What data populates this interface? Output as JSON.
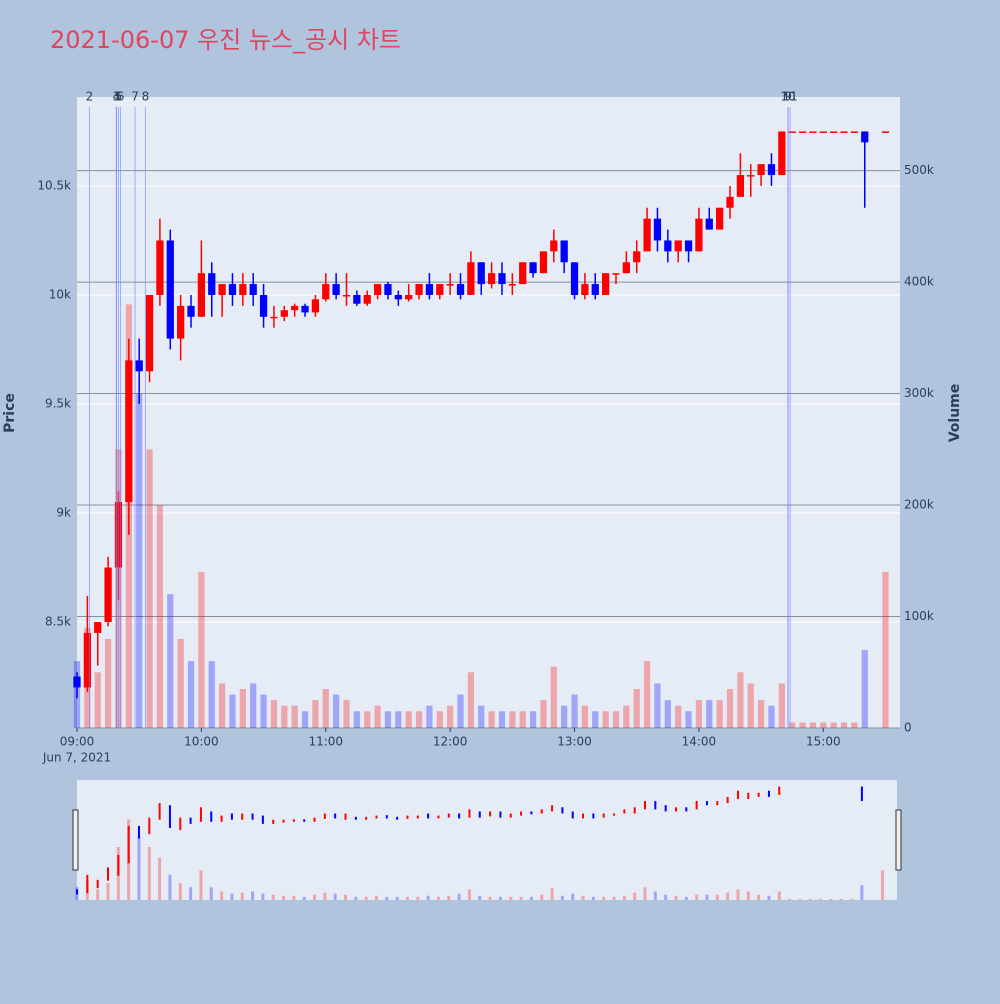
{
  "chart_data": {
    "type": "candlestick",
    "title": "2021-06-07 우진 뉴스_공시 차트",
    "y_label": "Price",
    "y2_label": "Volume",
    "date_label": "Jun 7, 2021",
    "up_color": "#ff0000",
    "down_color": "#0000ff",
    "xlim": [
      "2021-06-07 09:00",
      "2021-06-07 15:37"
    ],
    "xticks": [
      {
        "value": "2021-06-07 09:00",
        "label": "09:00"
      },
      {
        "value": "2021-06-07 10:00",
        "label": "10:00"
      },
      {
        "value": "2021-06-07 11:00",
        "label": "11:00"
      },
      {
        "value": "2021-06-07 12:00",
        "label": "12:00"
      },
      {
        "value": "2021-06-07 13:00",
        "label": "13:00"
      },
      {
        "value": "2021-06-07 14:00",
        "label": "14:00"
      },
      {
        "value": "2021-06-07 15:00",
        "label": "15:00"
      }
    ],
    "ylim": [
      8014,
      10908
    ],
    "yticks": [
      {
        "value": 8500,
        "label": "8.5k"
      },
      {
        "value": 9000,
        "label": "9k"
      },
      {
        "value": 9500,
        "label": "9.5k"
      },
      {
        "value": 10000,
        "label": "10k"
      },
      {
        "value": 10500,
        "label": "10.5k"
      }
    ],
    "y2lim": [
      0,
      566000
    ],
    "y2ticks": [
      0,
      {
        "value": 100000,
        "label": "100k"
      },
      {
        "value": 200000,
        "label": "200k"
      },
      {
        "value": 300000,
        "label": "300k"
      },
      {
        "value": 400000,
        "label": "400k"
      },
      {
        "value": 500000,
        "label": "500k"
      }
    ],
    "annotations": [
      {
        "x": "2021-06-07 09:06",
        "text": "2"
      },
      {
        "x": "2021-06-07 09:19",
        "text": "3"
      },
      {
        "x": "2021-06-07 09:19",
        "text": "4"
      },
      {
        "x": "2021-06-07 09:20",
        "text": "5"
      },
      {
        "x": "2021-06-07 09:21",
        "text": "6"
      },
      {
        "x": "2021-06-07 09:28",
        "text": "7"
      },
      {
        "x": "2021-06-07 09:33",
        "text": "8"
      },
      {
        "x": "2021-06-07 14:43",
        "text": "9"
      },
      {
        "x": "2021-06-07 14:43",
        "text": "10"
      },
      {
        "x": "2021-06-07 14:44",
        "text": "11"
      }
    ],
    "x": [
      "2021-06-07 09:00",
      "2021-06-07 09:05",
      "2021-06-07 09:10",
      "2021-06-07 09:15",
      "2021-06-07 09:20",
      "2021-06-07 09:25",
      "2021-06-07 09:30",
      "2021-06-07 09:35",
      "2021-06-07 09:40",
      "2021-06-07 09:45",
      "2021-06-07 09:50",
      "2021-06-07 09:55",
      "2021-06-07 10:00",
      "2021-06-07 10:05",
      "2021-06-07 10:10",
      "2021-06-07 10:15",
      "2021-06-07 10:20",
      "2021-06-07 10:25",
      "2021-06-07 10:30",
      "2021-06-07 10:35",
      "2021-06-07 10:40",
      "2021-06-07 10:45",
      "2021-06-07 10:50",
      "2021-06-07 10:55",
      "2021-06-07 11:00",
      "2021-06-07 11:05",
      "2021-06-07 11:10",
      "2021-06-07 11:15",
      "2021-06-07 11:20",
      "2021-06-07 11:25",
      "2021-06-07 11:30",
      "2021-06-07 11:35",
      "2021-06-07 11:40",
      "2021-06-07 11:45",
      "2021-06-07 11:50",
      "2021-06-07 11:55",
      "2021-06-07 12:00",
      "2021-06-07 12:05",
      "2021-06-07 12:10",
      "2021-06-07 12:15",
      "2021-06-07 12:20",
      "2021-06-07 12:25",
      "2021-06-07 12:30",
      "2021-06-07 12:35",
      "2021-06-07 12:40",
      "2021-06-07 12:45",
      "2021-06-07 12:50",
      "2021-06-07 12:55",
      "2021-06-07 13:00",
      "2021-06-07 13:05",
      "2021-06-07 13:10",
      "2021-06-07 13:15",
      "2021-06-07 13:20",
      "2021-06-07 13:25",
      "2021-06-07 13:30",
      "2021-06-07 13:35",
      "2021-06-07 13:40",
      "2021-06-07 13:45",
      "2021-06-07 13:50",
      "2021-06-07 13:55",
      "2021-06-07 14:00",
      "2021-06-07 14:05",
      "2021-06-07 14:10",
      "2021-06-07 14:15",
      "2021-06-07 14:20",
      "2021-06-07 14:25",
      "2021-06-07 14:30",
      "2021-06-07 14:35",
      "2021-06-07 14:40",
      "2021-06-07 14:45",
      "2021-06-07 14:50",
      "2021-06-07 14:55",
      "2021-06-07 15:00",
      "2021-06-07 15:05",
      "2021-06-07 15:10",
      "2021-06-07 15:15",
      "2021-06-07 15:20",
      "2021-06-07 15:30"
    ],
    "open": [
      8250,
      8200,
      8450,
      8500,
      8750,
      9050,
      9700,
      9650,
      10000,
      10250,
      9800,
      9950,
      9900,
      10100,
      10000,
      10050,
      10000,
      10050,
      10000,
      9900,
      9900,
      9930,
      9950,
      9920,
      9980,
      10050,
      10000,
      10000,
      9960,
      10000,
      10050,
      10000,
      9980,
      10000,
      10050,
      10000,
      10050,
      10050,
      10000,
      10150,
      10050,
      10100,
      10050,
      10050,
      10150,
      10100,
      10200,
      10250,
      10150,
      10000,
      10050,
      10000,
      10100,
      10100,
      10150,
      10200,
      10350,
      10250,
      10200,
      10250,
      10200,
      10350,
      10300,
      10400,
      10450,
      10550,
      10550,
      10600,
      10550,
      10750,
      10750,
      10750,
      10750,
      10750,
      10750,
      10750,
      10750,
      10750
    ],
    "high": [
      8270,
      8620,
      8500,
      8800,
      9100,
      9800,
      9800,
      10000,
      10350,
      10300,
      10000,
      10000,
      10250,
      10150,
      10050,
      10100,
      10100,
      10100,
      10050,
      9950,
      9950,
      9960,
      9960,
      10000,
      10100,
      10100,
      10100,
      10020,
      10020,
      10050,
      10060,
      10020,
      10050,
      10050,
      10100,
      10050,
      10100,
      10100,
      10200,
      10150,
      10150,
      10150,
      10100,
      10150,
      10150,
      10200,
      10300,
      10250,
      10150,
      10100,
      10100,
      10100,
      10100,
      10200,
      10250,
      10400,
      10400,
      10300,
      10250,
      10250,
      10400,
      10400,
      10400,
      10500,
      10650,
      10600,
      10600,
      10650,
      10750,
      10750,
      10750,
      10750,
      10750,
      10750,
      10750,
      10750,
      10750,
      10750
    ],
    "low": [
      8150,
      8180,
      8300,
      8480,
      8600,
      8900,
      9500,
      9600,
      9950,
      9750,
      9700,
      9850,
      9900,
      9900,
      9900,
      9950,
      9950,
      9950,
      9850,
      9850,
      9880,
      9900,
      9900,
      9900,
      9970,
      9980,
      9950,
      9950,
      9950,
      9980,
      9980,
      9950,
      9970,
      9980,
      9980,
      9980,
      10000,
      9980,
      10000,
      10000,
      10030,
      10000,
      10000,
      10050,
      10080,
      10100,
      10150,
      10100,
      9980,
      9980,
      9980,
      10000,
      10050,
      10100,
      10100,
      10200,
      10200,
      10150,
      10150,
      10150,
      10200,
      10300,
      10300,
      10350,
      10450,
      10450,
      10500,
      10500,
      10550,
      10750,
      10750,
      10750,
      10750,
      10750,
      10750,
      10750,
      10400,
      10750
    ],
    "close": [
      8200,
      8450,
      8500,
      8750,
      9050,
      9700,
      9650,
      10000,
      10250,
      9800,
      9950,
      9900,
      10100,
      10000,
      10050,
      10000,
      10050,
      10000,
      9900,
      9900,
      9930,
      9950,
      9920,
      9980,
      10050,
      10000,
      10000,
      9960,
      10000,
      10050,
      10000,
      9980,
      10000,
      10050,
      10000,
      10050,
      10050,
      10000,
      10150,
      10050,
      10100,
      10050,
      10050,
      10150,
      10100,
      10200,
      10250,
      10150,
      10000,
      10050,
      10000,
      10100,
      10100,
      10150,
      10200,
      10350,
      10250,
      10200,
      10250,
      10200,
      10350,
      10300,
      10400,
      10450,
      10550,
      10550,
      10600,
      10550,
      10750,
      10750,
      10750,
      10750,
      10750,
      10750,
      10750,
      10750,
      10700,
      10750
    ],
    "volume": [
      60000,
      90000,
      50000,
      80000,
      250000,
      380000,
      300000,
      250000,
      200000,
      120000,
      80000,
      60000,
      140000,
      60000,
      40000,
      30000,
      35000,
      40000,
      30000,
      25000,
      20000,
      20000,
      15000,
      25000,
      35000,
      30000,
      25000,
      15000,
      15000,
      20000,
      15000,
      15000,
      15000,
      15000,
      20000,
      15000,
      20000,
      30000,
      50000,
      20000,
      15000,
      15000,
      15000,
      15000,
      15000,
      25000,
      55000,
      20000,
      30000,
      20000,
      15000,
      15000,
      15000,
      20000,
      35000,
      60000,
      40000,
      25000,
      20000,
      15000,
      25000,
      25000,
      25000,
      35000,
      50000,
      40000,
      25000,
      20000,
      40000,
      5000,
      5000,
      5000,
      5000,
      5000,
      5000,
      5000,
      70000,
      140000
    ]
  }
}
